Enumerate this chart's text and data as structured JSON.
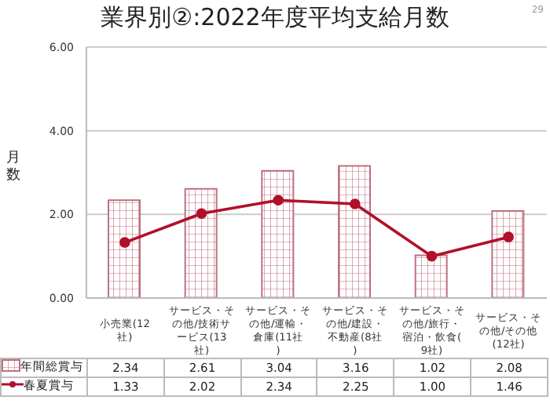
{
  "chart_data": {
    "type": "bar",
    "title": "業界別②:2022年度平均支給月数",
    "ylabel": "月数",
    "annotations": [
      "29"
    ],
    "categories": [
      "小売業(12社)",
      "サービス・その他/技術サービス(13社)",
      "サービス・その他/運輸・倉庫(11社)",
      "サービス・その他/建設・不動産(8社)",
      "サービス・その他/旅行・宿泊・飲食(9社)",
      "サービス・その他/その他(12社)"
    ],
    "series": [
      {
        "name": "年間総賞与",
        "color": "#c07080",
        "values": [
          2.34,
          2.61,
          3.04,
          3.16,
          1.02,
          2.08
        ]
      },
      {
        "name": "春夏賞与",
        "type": "line",
        "color": "#b0102a",
        "values": [
          1.33,
          2.02,
          2.34,
          2.25,
          1.0,
          1.46
        ],
        "value_labels": [
          "1.33",
          "2.02",
          "2.34",
          "2.25",
          "1.00",
          "1.46"
        ]
      }
    ],
    "ylim": [
      0,
      6
    ],
    "yticks": [
      {
        "value": 0,
        "label": "0.00"
      },
      {
        "value": 2,
        "label": "2.00"
      },
      {
        "value": 4,
        "label": "4.00"
      },
      {
        "value": 6,
        "label": "6.00"
      }
    ],
    "grid": "y",
    "legend": "bottom",
    "marker": "circle",
    "line_style": "solid",
    "data_labels": true
  }
}
